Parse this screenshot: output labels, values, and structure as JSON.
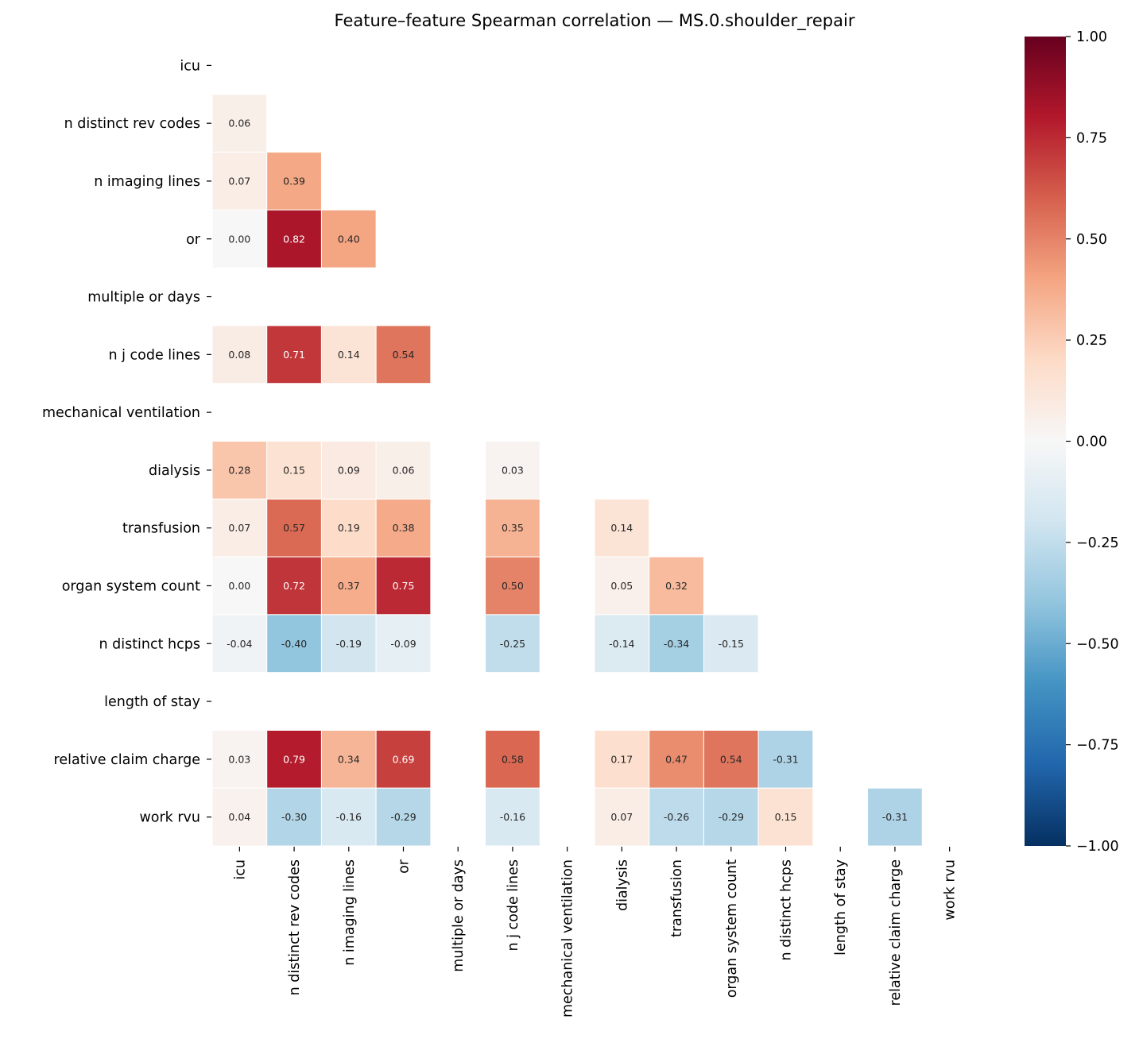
{
  "chart_data": {
    "type": "heatmap",
    "title": "Feature–feature Spearman correlation — MS.0.shoulder_repair",
    "labels": [
      "icu",
      "n distinct rev codes",
      "n imaging lines",
      "or",
      "multiple or days",
      "n j code lines",
      "mechanical ventilation",
      "dialysis",
      "transfusion",
      "organ system count",
      "n distinct hcps",
      "length of stay",
      "relative claim charge",
      "work rvu"
    ],
    "mask": "upper triangle and diagonal",
    "lower_triangle": [
      [],
      [
        0.06
      ],
      [
        0.07,
        0.39
      ],
      [
        0.0,
        0.82,
        0.4
      ],
      [
        null,
        null,
        null,
        null
      ],
      [
        0.08,
        0.71,
        0.14,
        0.54,
        null
      ],
      [
        null,
        null,
        null,
        null,
        null,
        null
      ],
      [
        0.28,
        0.15,
        0.09,
        0.06,
        null,
        0.03,
        null
      ],
      [
        0.07,
        0.57,
        0.19,
        0.38,
        null,
        0.35,
        null,
        0.14
      ],
      [
        0.0,
        0.72,
        0.37,
        0.75,
        null,
        0.5,
        null,
        0.05,
        0.32
      ],
      [
        -0.04,
        -0.4,
        -0.19,
        -0.09,
        null,
        -0.25,
        null,
        -0.14,
        -0.34,
        -0.15
      ],
      [
        null,
        null,
        null,
        null,
        null,
        null,
        null,
        null,
        null,
        null,
        null
      ],
      [
        0.03,
        0.79,
        0.34,
        0.69,
        null,
        0.58,
        null,
        0.17,
        0.47,
        0.54,
        -0.31,
        null
      ],
      [
        0.04,
        -0.3,
        -0.16,
        -0.29,
        null,
        -0.16,
        null,
        0.07,
        -0.26,
        -0.29,
        0.15,
        null,
        -0.31
      ]
    ],
    "colormap": "RdBu_r",
    "vmin": -1,
    "vmax": 1,
    "colorbar_ticks": [
      "1.00",
      "0.75",
      "0.50",
      "0.25",
      "0.00",
      "−0.25",
      "−0.50",
      "−0.75",
      "−1.00"
    ],
    "colorbar_tick_values": [
      1,
      0.75,
      0.5,
      0.25,
      0,
      -0.25,
      -0.5,
      -0.75,
      -1
    ],
    "annotation_format": "0.00"
  }
}
